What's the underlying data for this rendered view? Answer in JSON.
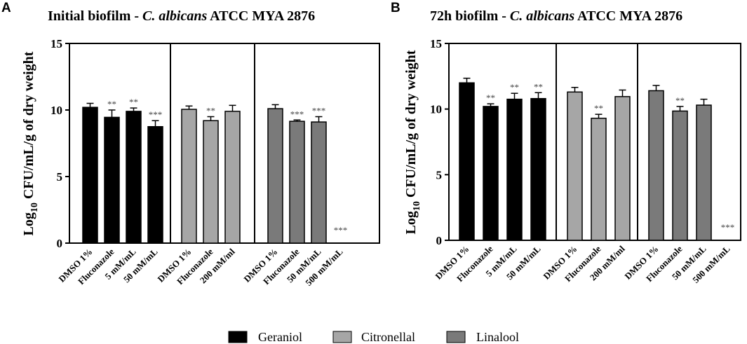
{
  "legend": [
    {
      "name": "Geraniol",
      "color": "#000000"
    },
    {
      "name": "Citronellal",
      "color": "#a6a6a6"
    },
    {
      "name": "Linalool",
      "color": "#7a7a7a"
    }
  ],
  "chart_data": [
    {
      "type": "bar",
      "panel": "A",
      "title_plain": "Initial biofilm - ",
      "title_italic": "C. albicans",
      "title_rest": " ATCC MYA 2876",
      "ylabel": "Log10 CFU/mL/g of dry weight",
      "ylabel_parts": {
        "main": "Log",
        "sub": "10",
        "rest": " CFU/mL/g of dry weight"
      },
      "ylim": [
        0,
        15
      ],
      "yticks": [
        0,
        5,
        10,
        15
      ],
      "groups": [
        {
          "series": "Geraniol",
          "color": "#000000",
          "categories": [
            "DMSO 1%",
            "Fluconazole",
            "5 mM/mL",
            "50 mM/mL"
          ],
          "values": [
            10.2,
            9.45,
            9.9,
            8.75
          ],
          "errors": [
            0.3,
            0.55,
            0.25,
            0.45
          ],
          "sig": [
            "",
            "**",
            "**",
            "***"
          ]
        },
        {
          "series": "Citronellal",
          "color": "#a6a6a6",
          "categories": [
            "DMSO 1%",
            "Fluconazole",
            "200 mM/ml"
          ],
          "values": [
            10.05,
            9.2,
            9.9
          ],
          "errors": [
            0.25,
            0.3,
            0.45
          ],
          "sig": [
            "",
            "**",
            ""
          ]
        },
        {
          "series": "Linalool",
          "color": "#7a7a7a",
          "categories": [
            "DMSO 1%",
            "Fluconazole",
            "50 mM/mL",
            "500 mM/mL"
          ],
          "values": [
            10.1,
            9.15,
            9.1,
            0
          ],
          "errors": [
            0.3,
            0.1,
            0.4,
            0
          ],
          "sig": [
            "",
            "***",
            "***",
            "***"
          ]
        }
      ]
    },
    {
      "type": "bar",
      "panel": "B",
      "title_plain": "72h biofilm - ",
      "title_italic": "C. albicans",
      "title_rest": " ATCC MYA 2876",
      "ylabel": "Log10 CFU/mL/g of dry weight",
      "ylabel_parts": {
        "main": "Log",
        "sub": "10",
        "rest": " CFU/mL/g of dry weight"
      },
      "ylim": [
        0,
        15
      ],
      "yticks": [
        0,
        5,
        10,
        15
      ],
      "groups": [
        {
          "series": "Geraniol",
          "color": "#000000",
          "categories": [
            "DMSO 1%",
            "Fluconazole",
            "5 mM/mL",
            "50 mM/mL"
          ],
          "values": [
            12.0,
            10.2,
            10.75,
            10.8
          ],
          "errors": [
            0.35,
            0.2,
            0.45,
            0.45
          ],
          "sig": [
            "",
            "**",
            "**",
            "**"
          ]
        },
        {
          "series": "Citronellal",
          "color": "#a6a6a6",
          "categories": [
            "DMSO 1%",
            "Fluconazole",
            "200 mM/ml"
          ],
          "values": [
            11.3,
            9.3,
            10.95
          ],
          "errors": [
            0.35,
            0.3,
            0.5
          ],
          "sig": [
            "",
            "**",
            ""
          ]
        },
        {
          "series": "Linalool",
          "color": "#7a7a7a",
          "categories": [
            "DMSO 1%",
            "Fluconazole",
            "50 mM/mL",
            "500 mM/mL"
          ],
          "values": [
            11.4,
            9.85,
            10.3,
            0
          ],
          "errors": [
            0.4,
            0.35,
            0.45,
            0
          ],
          "sig": [
            "",
            "**",
            "",
            "***"
          ]
        }
      ]
    }
  ]
}
